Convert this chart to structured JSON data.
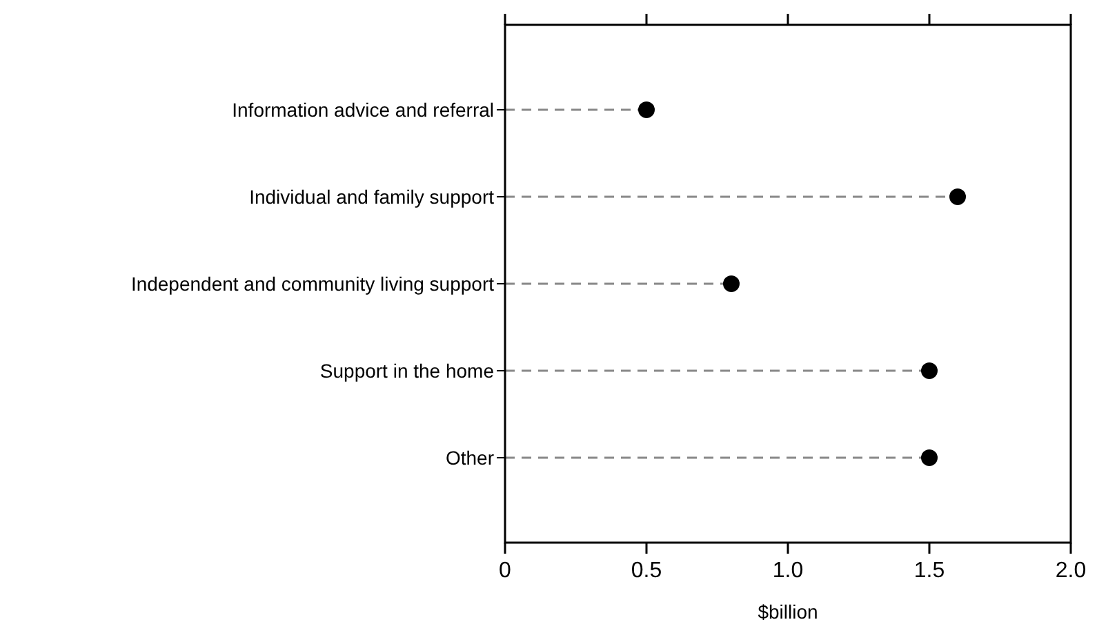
{
  "chart_data": {
    "type": "lollipop",
    "orientation": "horizontal",
    "xlabel": "$billion",
    "categories": [
      "Information advice and referral",
      "Individual and family support",
      "Independent and community living support",
      "Support in the home",
      "Other"
    ],
    "values": [
      0.5,
      1.6,
      0.8,
      1.5,
      1.5
    ],
    "color": "#000000",
    "xlim": [
      0,
      2
    ],
    "xticks": [
      0,
      0.5,
      {
        "value": 1,
        "label": "1.0"
      },
      1.5,
      {
        "value": 2,
        "label": "2.0"
      }
    ],
    "marker": "circle",
    "line_style": "dashed",
    "grid": false
  }
}
